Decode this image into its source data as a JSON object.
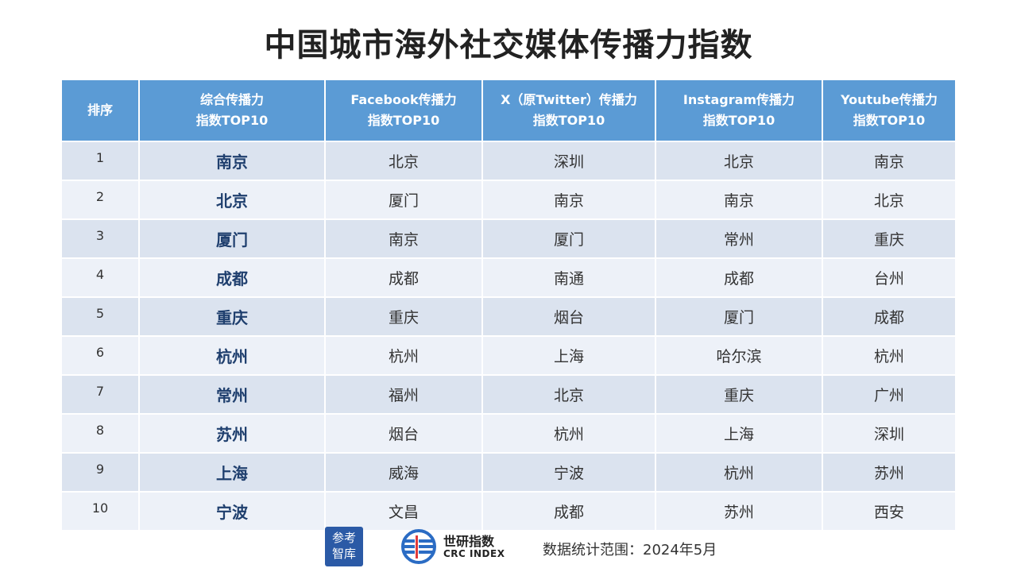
{
  "title": "中国城市海外社交媒体传播力指数",
  "table": {
    "headers": [
      [
        "排序"
      ],
      [
        "综合传播力",
        "指数TOP10"
      ],
      [
        "Facebook传播力",
        "指数TOP10"
      ],
      [
        "X（原Twitter）传播力",
        "指数TOP10"
      ],
      [
        "Instagram传播力",
        "指数TOP10"
      ],
      [
        "Youtube传播力",
        "指数TOP10"
      ]
    ],
    "rows": [
      [
        "1",
        "南京",
        "北京",
        "深圳",
        "北京",
        "南京"
      ],
      [
        "2",
        "北京",
        "厦门",
        "南京",
        "南京",
        "北京"
      ],
      [
        "3",
        "厦门",
        "南京",
        "厦门",
        "常州",
        "重庆"
      ],
      [
        "4",
        "成都",
        "成都",
        "南通",
        "成都",
        "台州"
      ],
      [
        "5",
        "重庆",
        "重庆",
        "烟台",
        "厦门",
        "成都"
      ],
      [
        "6",
        "杭州",
        "杭州",
        "上海",
        "哈尔滨",
        "杭州"
      ],
      [
        "7",
        "常州",
        "福州",
        "北京",
        "重庆",
        "广州"
      ],
      [
        "8",
        "苏州",
        "烟台",
        "杭州",
        "上海",
        "深圳"
      ],
      [
        "9",
        "上海",
        "威海",
        "宁波",
        "杭州",
        "苏州"
      ],
      [
        "10",
        "宁波",
        "文昌",
        "成都",
        "苏州",
        "西安"
      ]
    ]
  },
  "footer": {
    "logo1_line1": "参考",
    "logo1_line2": "智库",
    "logo2_cn": "世研指数",
    "logo2_en": "CRC INDEX",
    "source": "数据统计范围：2024年5月"
  },
  "colors": {
    "header_bg": "#5b9bd5",
    "row_odd": "#dbe3ef",
    "row_even": "#edf1f8",
    "logo_blue": "#2b5aa6"
  }
}
